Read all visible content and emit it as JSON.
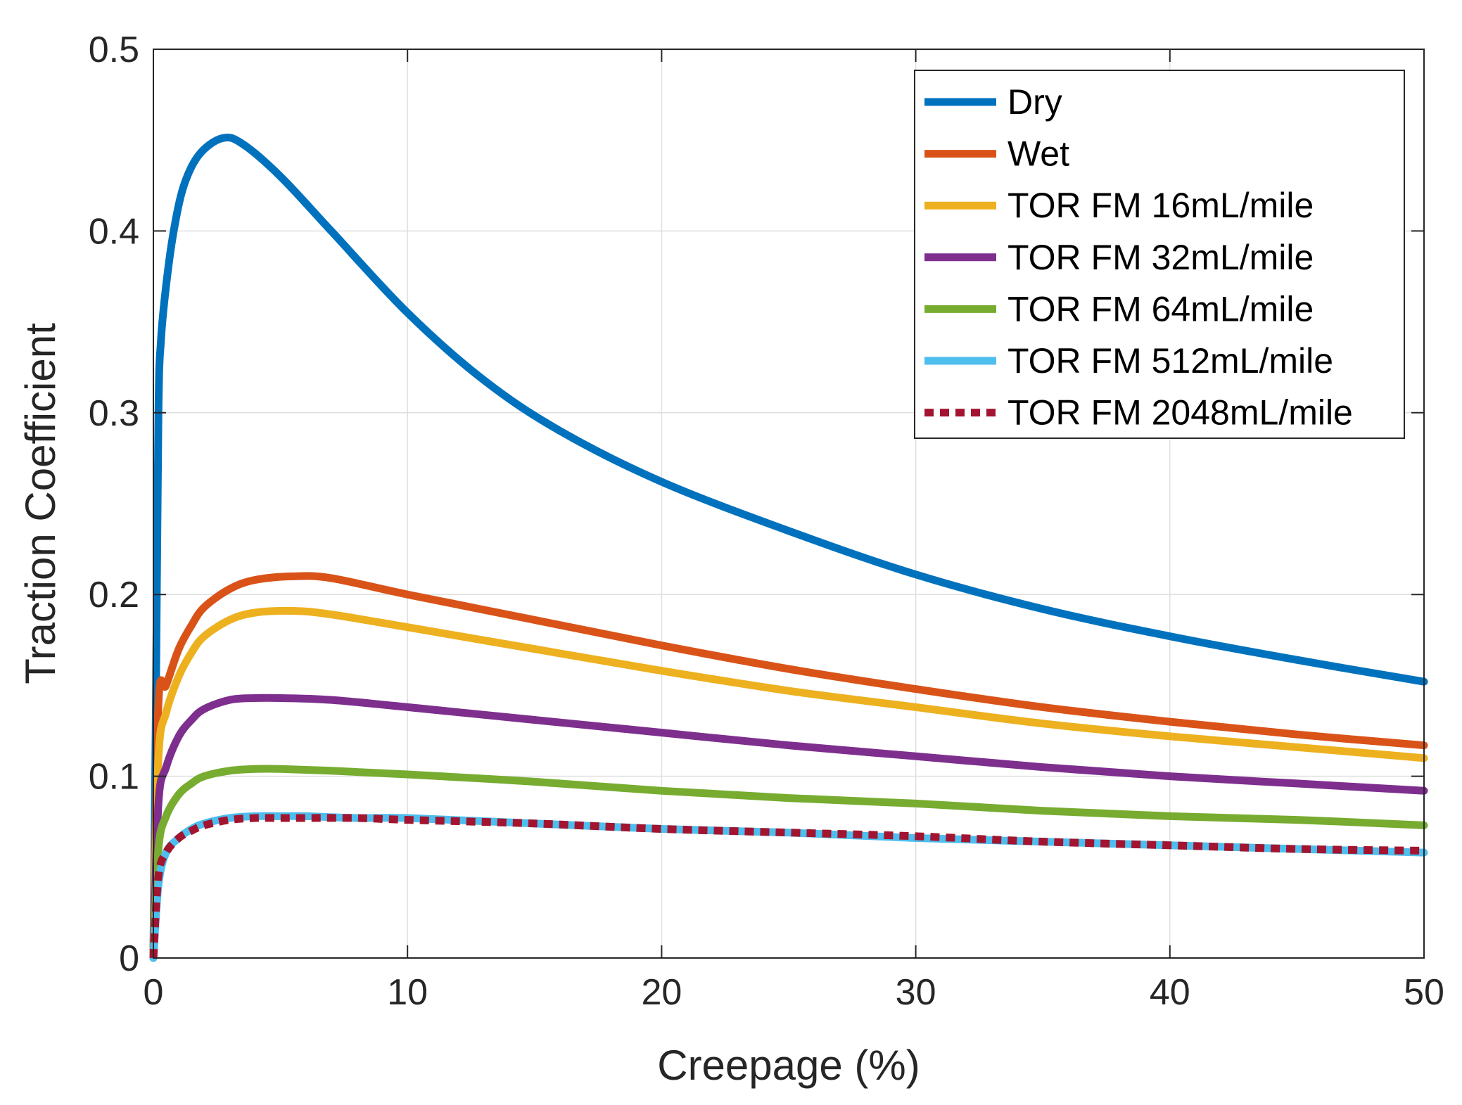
{
  "chart_data": {
    "type": "line",
    "title": "",
    "xlabel": "Creepage (%)",
    "ylabel": "Traction Coefficient",
    "xlim": [
      0,
      50
    ],
    "ylim": [
      0,
      0.5
    ],
    "xticks": [
      0,
      10,
      20,
      30,
      40,
      50
    ],
    "xtick_labels": [
      "0",
      "10",
      "20",
      "30",
      "40",
      "50"
    ],
    "yticks": [
      0,
      0.1,
      0.2,
      0.3,
      0.4,
      0.5
    ],
    "ytick_labels": [
      "0",
      "0.1",
      "0.2",
      "0.3",
      "0.4",
      "0.5"
    ],
    "grid": true,
    "legend_position": "top-right",
    "series": [
      {
        "name": "Dry",
        "color": "#0072BD",
        "dashed": false,
        "x": [
          0,
          0.1,
          0.2,
          0.3,
          0.5,
          0.8,
          1.2,
          1.8,
          2.7,
          3.5,
          5,
          7,
          10,
          13,
          16,
          20,
          25,
          30,
          35,
          40,
          45,
          50
        ],
        "y": [
          0,
          0.14,
          0.3,
          0.34,
          0.37,
          0.4,
          0.425,
          0.442,
          0.451,
          0.448,
          0.43,
          0.4,
          0.355,
          0.318,
          0.29,
          0.262,
          0.235,
          0.211,
          0.192,
          0.177,
          0.164,
          0.152
        ]
      },
      {
        "name": "Wet",
        "color": "#D95319",
        "dashed": false,
        "x": [
          0,
          0.2,
          0.5,
          1,
          1.5,
          2,
          3,
          4,
          5.5,
          7,
          10,
          15,
          20,
          25,
          30,
          35,
          40,
          45,
          50
        ],
        "y": [
          0,
          0.14,
          0.15,
          0.17,
          0.183,
          0.193,
          0.203,
          0.208,
          0.21,
          0.209,
          0.2,
          0.186,
          0.172,
          0.159,
          0.148,
          0.138,
          0.13,
          0.123,
          0.117
        ]
      },
      {
        "name": "TOR FM 16mL/mile",
        "color": "#EDB120",
        "dashed": false,
        "x": [
          0,
          0.2,
          0.5,
          1,
          1.5,
          2,
          3,
          4,
          5.5,
          7,
          10,
          15,
          20,
          25,
          30,
          35,
          40,
          45,
          50
        ],
        "y": [
          0,
          0.11,
          0.135,
          0.155,
          0.168,
          0.177,
          0.186,
          0.19,
          0.191,
          0.189,
          0.182,
          0.17,
          0.158,
          0.147,
          0.138,
          0.129,
          0.122,
          0.116,
          0.11
        ]
      },
      {
        "name": "TOR FM 32mL/mile",
        "color": "#7E2F8E",
        "dashed": false,
        "x": [
          0,
          0.2,
          0.5,
          1,
          1.5,
          2,
          3,
          4,
          5,
          7,
          10,
          15,
          20,
          25,
          30,
          35,
          40,
          45,
          50
        ],
        "y": [
          0,
          0.085,
          0.105,
          0.122,
          0.131,
          0.137,
          0.142,
          0.143,
          0.143,
          0.142,
          0.138,
          0.131,
          0.124,
          0.117,
          0.111,
          0.105,
          0.1,
          0.096,
          0.092
        ]
      },
      {
        "name": "TOR FM 64mL/mile",
        "color": "#77AC30",
        "dashed": false,
        "x": [
          0,
          0.2,
          0.5,
          1,
          1.5,
          2,
          3,
          4,
          5,
          7,
          10,
          15,
          20,
          25,
          30,
          35,
          40,
          45,
          50
        ],
        "y": [
          0,
          0.06,
          0.078,
          0.09,
          0.096,
          0.1,
          0.103,
          0.104,
          0.104,
          0.103,
          0.101,
          0.097,
          0.092,
          0.088,
          0.085,
          0.081,
          0.078,
          0.076,
          0.073
        ]
      },
      {
        "name": "TOR FM 512mL/mile",
        "color": "#4DBEEE",
        "dashed": false,
        "x": [
          0,
          0.2,
          0.5,
          1,
          1.5,
          2,
          3,
          4,
          5,
          6,
          8,
          10,
          15,
          20,
          25,
          30,
          35,
          40,
          45,
          50
        ],
        "y": [
          0,
          0.04,
          0.058,
          0.066,
          0.071,
          0.074,
          0.077,
          0.078,
          0.078,
          0.078,
          0.077,
          0.077,
          0.074,
          0.071,
          0.069,
          0.066,
          0.064,
          0.062,
          0.06,
          0.058
        ]
      },
      {
        "name": "TOR FM 2048mL/mile",
        "color": "#A2142F",
        "dashed": true,
        "x": [
          0,
          0.2,
          0.5,
          1,
          1.5,
          2,
          3,
          4,
          5,
          6,
          8,
          10,
          15,
          20,
          25,
          30,
          35,
          40,
          45,
          50
        ],
        "y": [
          0,
          0.045,
          0.058,
          0.066,
          0.07,
          0.073,
          0.076,
          0.077,
          0.077,
          0.077,
          0.077,
          0.076,
          0.074,
          0.071,
          0.069,
          0.067,
          0.064,
          0.062,
          0.06,
          0.059
        ]
      }
    ]
  }
}
